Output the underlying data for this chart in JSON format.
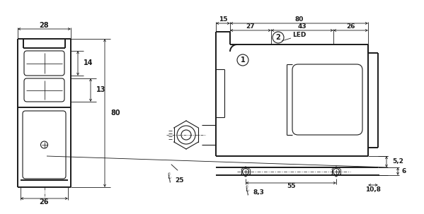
{
  "bg_color": "#ffffff",
  "line_color": "#1a1a1a",
  "lw_main": 1.4,
  "lw_thin": 0.8,
  "lw_dim": 0.6,
  "lw_cl": 0.5,
  "fig_width": 5.99,
  "fig_height": 3.03,
  "dpi": 100
}
